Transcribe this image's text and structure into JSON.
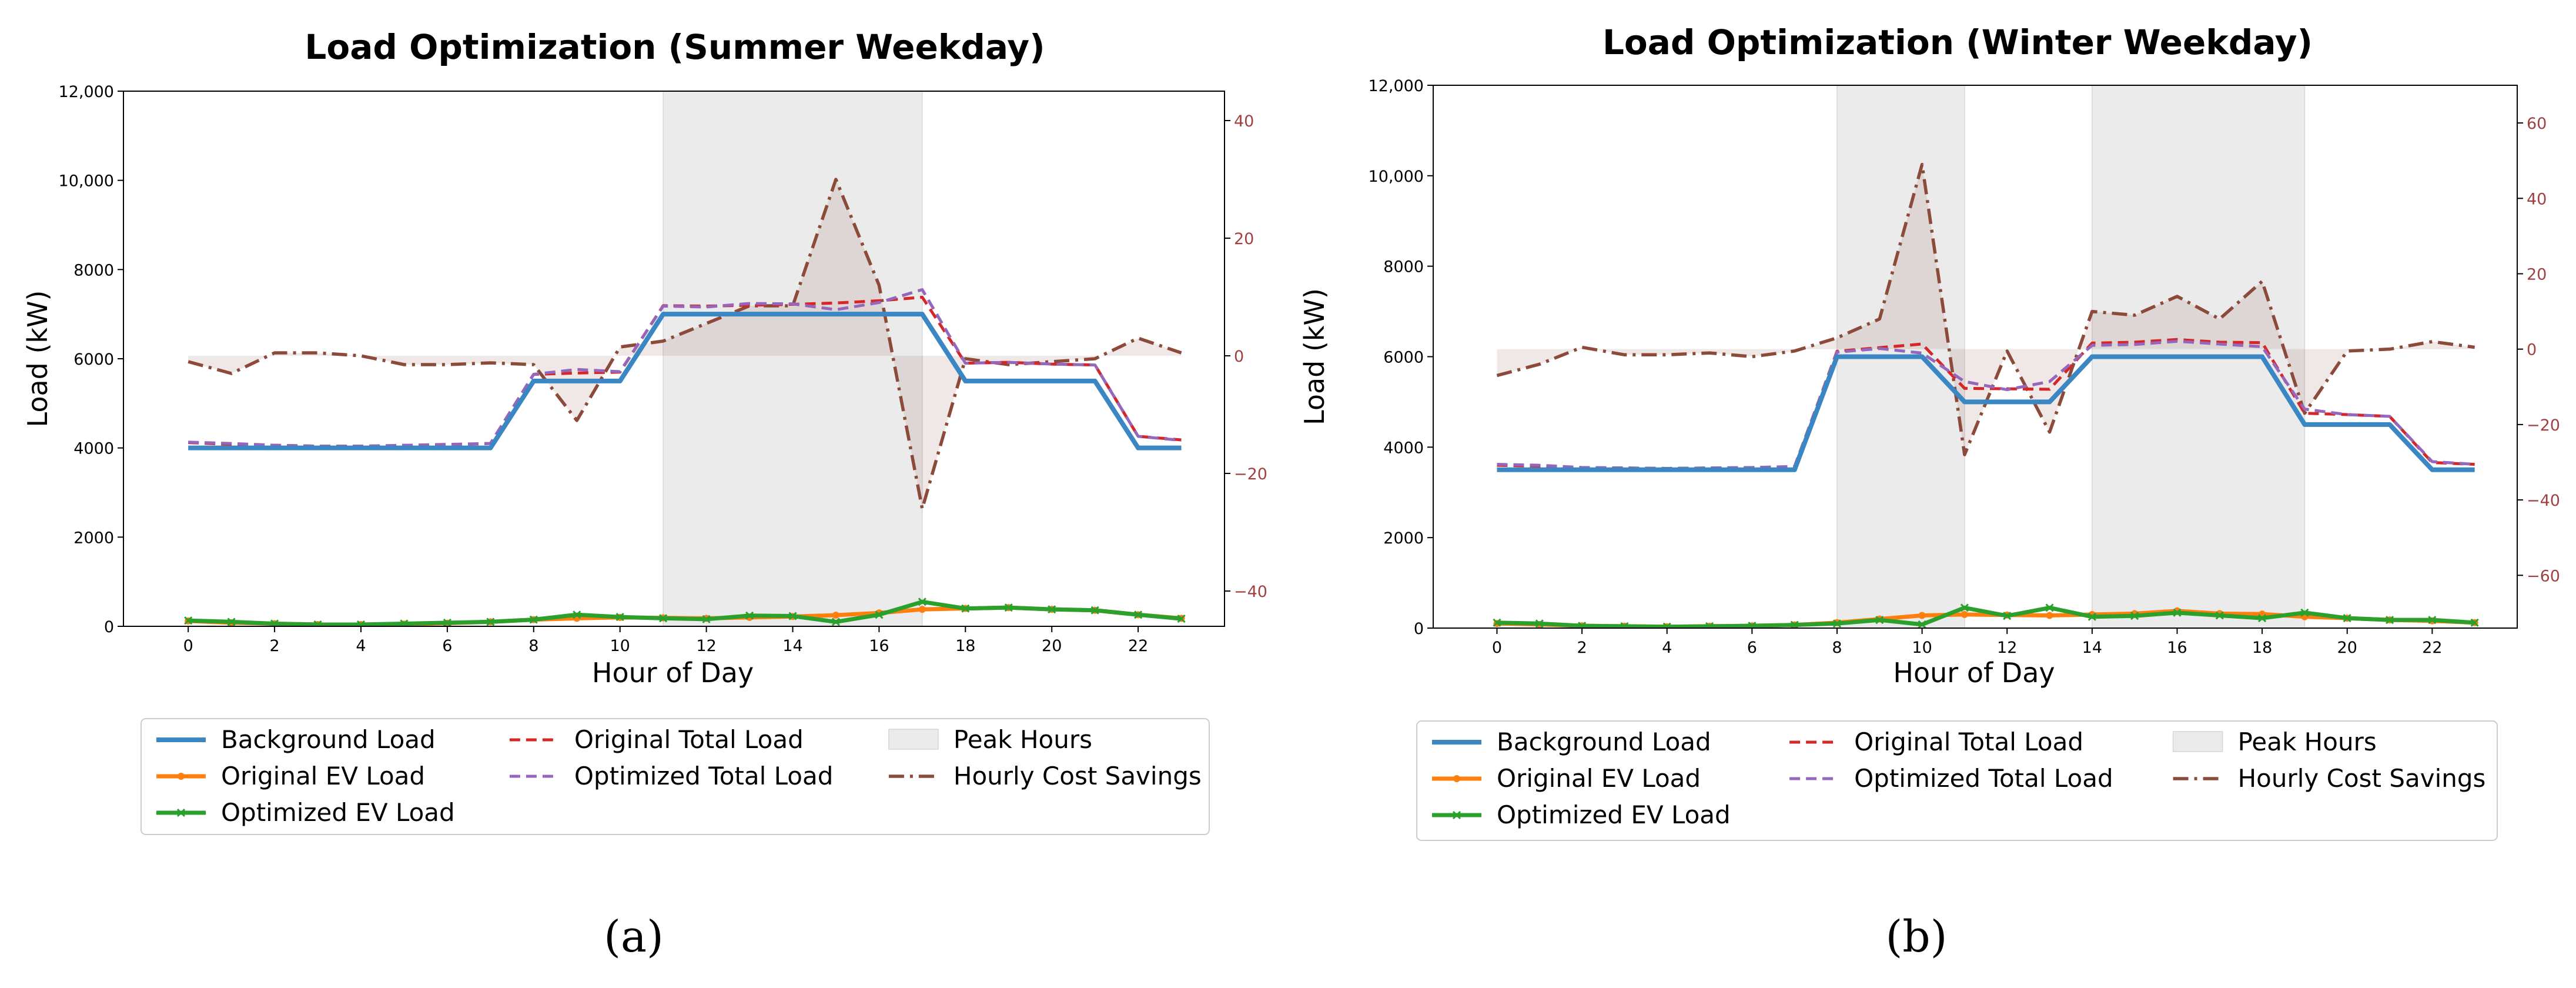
{
  "chart_data": [
    {
      "type": "line",
      "panel_label": "(a)",
      "title": "Load Optimization (Summer Weekday)",
      "xlabel": "Hour of Day",
      "ylabel": "Load (kW)",
      "x_ticks": [
        "0",
        "2",
        "4",
        "6",
        "8",
        "10",
        "12",
        "14",
        "16",
        "18",
        "20",
        "22"
      ],
      "y_ticks": [
        "0",
        "2000",
        "4000",
        "6000",
        "8000",
        "10,000",
        "12,000"
      ],
      "y2_ticks": [
        "−40",
        "−20",
        "0",
        "20",
        "40"
      ],
      "xlim": [
        -1.5,
        24
      ],
      "ylim": [
        0,
        12000
      ],
      "y2lim": [
        -46,
        45
      ],
      "peak_hours": [
        [
          11,
          17
        ]
      ],
      "x": [
        0,
        1,
        2,
        3,
        4,
        5,
        6,
        7,
        8,
        9,
        10,
        11,
        12,
        13,
        14,
        15,
        16,
        17,
        18,
        19,
        20,
        21,
        22,
        23
      ],
      "series": [
        {
          "name": "Background Load",
          "values": [
            4000,
            4000,
            4000,
            4000,
            4000,
            4000,
            4000,
            4000,
            5500,
            5500,
            5500,
            7000,
            7000,
            7000,
            7000,
            7000,
            7000,
            7000,
            5500,
            5500,
            5500,
            5500,
            4000,
            4000
          ]
        },
        {
          "name": "Original EV Load",
          "values": [
            120,
            80,
            60,
            40,
            40,
            50,
            70,
            100,
            150,
            180,
            200,
            190,
            180,
            200,
            220,
            250,
            300,
            380,
            400,
            420,
            380,
            360,
            260,
            180
          ]
        },
        {
          "name": "Optimized EV Load",
          "values": [
            130,
            100,
            60,
            40,
            40,
            60,
            80,
            100,
            150,
            260,
            210,
            180,
            160,
            240,
            230,
            100,
            260,
            550,
            400,
            420,
            380,
            360,
            260,
            170
          ]
        },
        {
          "name": "Original Total Load",
          "values": [
            4120,
            4080,
            4060,
            4040,
            4040,
            4050,
            4070,
            4100,
            5650,
            5680,
            5700,
            7190,
            7180,
            7200,
            7220,
            7250,
            7300,
            7380,
            5900,
            5920,
            5880,
            5860,
            4260,
            4180
          ]
        },
        {
          "name": "Optimized Total Load",
          "values": [
            4130,
            4100,
            4060,
            4040,
            4040,
            4060,
            4080,
            4100,
            5650,
            5760,
            5710,
            7180,
            7160,
            7240,
            7230,
            7100,
            7260,
            7550,
            5900,
            5920,
            5880,
            5860,
            4260,
            4170
          ]
        },
        {
          "name": "Hourly Cost Savings",
          "axis": "right",
          "values": [
            -1,
            -3,
            0.5,
            0.5,
            0,
            -1.5,
            -1.5,
            -1.2,
            -1.5,
            -11,
            1.5,
            2.5,
            5.5,
            8.5,
            8.5,
            30,
            12,
            -26,
            -0.5,
            -1.5,
            -1,
            -0.5,
            3,
            0.5
          ]
        }
      ],
      "legend": [
        "Background Load",
        "Original EV Load",
        "Optimized EV Load",
        "Original Total Load",
        "Optimized Total Load",
        "Peak Hours",
        "Hourly Cost Savings"
      ]
    },
    {
      "type": "line",
      "panel_label": "(b)",
      "title": "Load Optimization (Winter Weekday)",
      "xlabel": "Hour of Day",
      "ylabel": "Load (kW)",
      "x_ticks": [
        "0",
        "2",
        "4",
        "6",
        "8",
        "10",
        "12",
        "14",
        "16",
        "18",
        "20",
        "22"
      ],
      "y_ticks": [
        "0",
        "2000",
        "4000",
        "6000",
        "8000",
        "10,000",
        "12,000"
      ],
      "y2_ticks": [
        "−60",
        "−40",
        "−20",
        "0",
        "20",
        "40",
        "60"
      ],
      "xlim": [
        -1.5,
        24
      ],
      "ylim": [
        0,
        12000
      ],
      "y2lim": [
        -74,
        70
      ],
      "peak_hours": [
        [
          8,
          11
        ],
        [
          14,
          19
        ]
      ],
      "x": [
        0,
        1,
        2,
        3,
        4,
        5,
        6,
        7,
        8,
        9,
        10,
        11,
        12,
        13,
        14,
        15,
        16,
        17,
        18,
        19,
        20,
        21,
        22,
        23
      ],
      "series": [
        {
          "name": "Background Load",
          "values": [
            3500,
            3500,
            3500,
            3500,
            3500,
            3500,
            3500,
            3500,
            6000,
            6000,
            6000,
            5000,
            5000,
            5000,
            6000,
            6000,
            6000,
            6000,
            6000,
            4500,
            4500,
            4500,
            3500,
            3500
          ]
        },
        {
          "name": "Original EV Load",
          "values": [
            100,
            80,
            50,
            40,
            30,
            40,
            50,
            70,
            120,
            200,
            280,
            300,
            290,
            280,
            300,
            320,
            380,
            320,
            310,
            250,
            220,
            180,
            160,
            120
          ]
        },
        {
          "name": "Optimized EV Load",
          "values": [
            120,
            100,
            50,
            40,
            30,
            40,
            50,
            70,
            100,
            180,
            80,
            450,
            270,
            450,
            250,
            270,
            340,
            280,
            220,
            340,
            220,
            180,
            180,
            120
          ]
        },
        {
          "name": "Original Total Load",
          "values": [
            3600,
            3580,
            3550,
            3540,
            3530,
            3540,
            3550,
            3570,
            6120,
            6200,
            6280,
            5300,
            5290,
            5280,
            6300,
            6320,
            6380,
            6320,
            6310,
            4750,
            4720,
            4680,
            3660,
            3620
          ]
        },
        {
          "name": "Optimized Total Load",
          "values": [
            3620,
            3600,
            3550,
            3540,
            3530,
            3540,
            3550,
            3570,
            6100,
            6180,
            6080,
            5450,
            5270,
            5450,
            6250,
            6270,
            6340,
            6280,
            6220,
            4840,
            4720,
            4680,
            3680,
            3620
          ]
        },
        {
          "name": "Hourly Cost Savings",
          "axis": "right",
          "values": [
            -7,
            -4,
            0.5,
            -1.5,
            -1.5,
            -1,
            -2,
            -0.5,
            3,
            8,
            49,
            -28,
            -0.5,
            -22,
            10,
            9,
            14,
            8,
            18,
            -17,
            -0.5,
            0,
            2,
            0.5
          ]
        }
      ],
      "legend": [
        "Background Load",
        "Original EV Load",
        "Optimized EV Load",
        "Original Total Load",
        "Optimized Total Load",
        "Peak Hours",
        "Hourly Cost Savings"
      ]
    }
  ],
  "colors": {
    "background_load": "#3a87c4",
    "original_ev": "#ff7f0e",
    "optimized_ev": "#2ca02c",
    "original_total": "#d62728",
    "optimized_total": "#9467bd",
    "savings": "#8c4b3a",
    "peak": "#ebebeb",
    "right_axis": "#a04040"
  }
}
